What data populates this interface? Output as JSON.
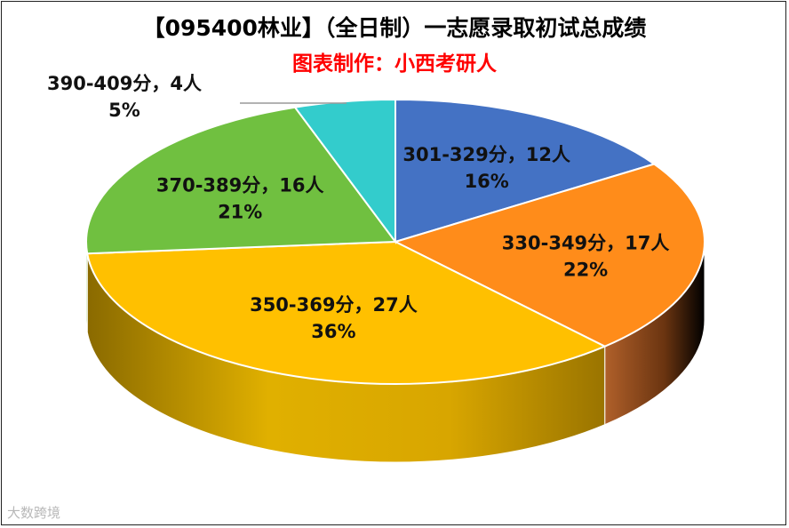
{
  "chart_data": {
    "type": "pie",
    "title": "【095400林业】（全日制）一志愿录取初试总成绩",
    "subtitle": "图表制作：小西考研人",
    "slices": [
      {
        "range": "301-329分",
        "count_label": "12人",
        "count": 12,
        "percent_label": "16%",
        "percent": 16,
        "color": "#4472c4"
      },
      {
        "range": "330-349分",
        "count_label": "17人",
        "count": 17,
        "percent_label": "22%",
        "percent": 22,
        "color": "#ff8c1a"
      },
      {
        "range": "350-369分",
        "count_label": "27人",
        "count": 27,
        "percent_label": "36%",
        "percent": 36,
        "color": "#ffc000"
      },
      {
        "range": "370-389分",
        "count_label": "16人",
        "count": 16,
        "percent_label": "21%",
        "percent": 21,
        "color": "#70c040"
      },
      {
        "range": "390-409分",
        "count_label": "4人",
        "count": 4,
        "percent_label": "5%",
        "percent": 5,
        "color": "#33cccc"
      }
    ]
  },
  "watermark": "大数跨境"
}
